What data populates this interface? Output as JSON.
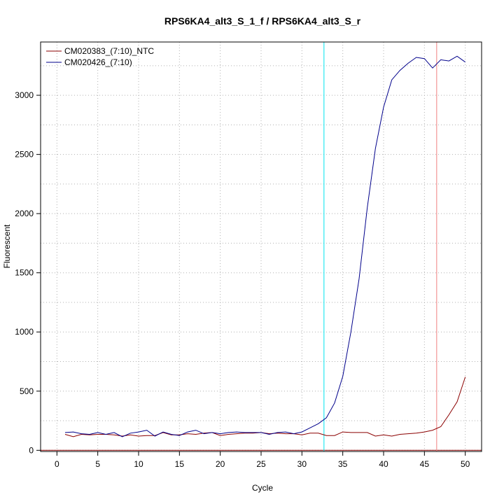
{
  "chart_data": {
    "type": "line",
    "title": "RPS6KA4_alt3_S_1_f / RPS6KA4_alt3_S_r",
    "xlabel": "Cycle",
    "ylabel": "Fluorescent",
    "xlim": [
      -2,
      52
    ],
    "ylim": [
      -10,
      3450
    ],
    "xticks": [
      0,
      5,
      10,
      15,
      20,
      25,
      30,
      35,
      40,
      45,
      50
    ],
    "yticks": [
      0,
      500,
      1000,
      1500,
      2000,
      2500,
      3000
    ],
    "xgrid": [
      0,
      5,
      10,
      15,
      20,
      25,
      30,
      35,
      40,
      45,
      50
    ],
    "ygrid": [
      0,
      250,
      500,
      750,
      1000,
      1250,
      1500,
      1750,
      2000,
      2250,
      2500,
      2750,
      3000,
      3250
    ],
    "grid": true,
    "legend_position": "top-left",
    "baseline": 0,
    "threshold_lines": [
      {
        "x": 32.7,
        "color": "#00e5ee"
      },
      {
        "x": 46.5,
        "color": "#f08080"
      }
    ],
    "series": [
      {
        "name": "CM020383_(7:10)_NTC",
        "color": "#8b0000",
        "x": [
          1,
          2,
          3,
          4,
          5,
          6,
          7,
          8,
          9,
          10,
          11,
          12,
          13,
          14,
          15,
          16,
          17,
          18,
          19,
          20,
          21,
          22,
          23,
          24,
          25,
          26,
          27,
          28,
          29,
          30,
          31,
          32,
          33,
          34,
          35,
          36,
          37,
          38,
          39,
          40,
          41,
          42,
          43,
          44,
          45,
          46,
          47,
          48,
          49,
          50
        ],
        "y": [
          135,
          115,
          135,
          130,
          135,
          135,
          130,
          120,
          130,
          120,
          125,
          125,
          150,
          130,
          130,
          140,
          135,
          145,
          150,
          125,
          135,
          140,
          145,
          145,
          150,
          140,
          145,
          140,
          140,
          130,
          145,
          145,
          125,
          125,
          155,
          150,
          150,
          150,
          120,
          130,
          120,
          135,
          140,
          145,
          155,
          170,
          200,
          300,
          410,
          620
        ]
      },
      {
        "name": "CM020426_(7:10)",
        "color": "#00008b",
        "x": [
          1,
          2,
          3,
          4,
          5,
          6,
          7,
          8,
          9,
          10,
          11,
          12,
          13,
          14,
          15,
          16,
          17,
          18,
          19,
          20,
          21,
          22,
          23,
          24,
          25,
          26,
          27,
          28,
          29,
          30,
          31,
          32,
          33,
          34,
          35,
          36,
          37,
          38,
          39,
          40,
          41,
          42,
          43,
          44,
          45,
          46,
          47,
          48,
          49,
          50
        ],
        "y": [
          150,
          155,
          140,
          135,
          150,
          135,
          150,
          115,
          145,
          155,
          170,
          120,
          155,
          135,
          125,
          155,
          170,
          140,
          150,
          140,
          150,
          155,
          150,
          150,
          150,
          135,
          150,
          155,
          140,
          155,
          190,
          225,
          275,
          400,
          625,
          1000,
          1450,
          2050,
          2550,
          2900,
          3130,
          3210,
          3270,
          3320,
          3310,
          3230,
          3300,
          3290,
          3330,
          3280
        ]
      }
    ]
  }
}
